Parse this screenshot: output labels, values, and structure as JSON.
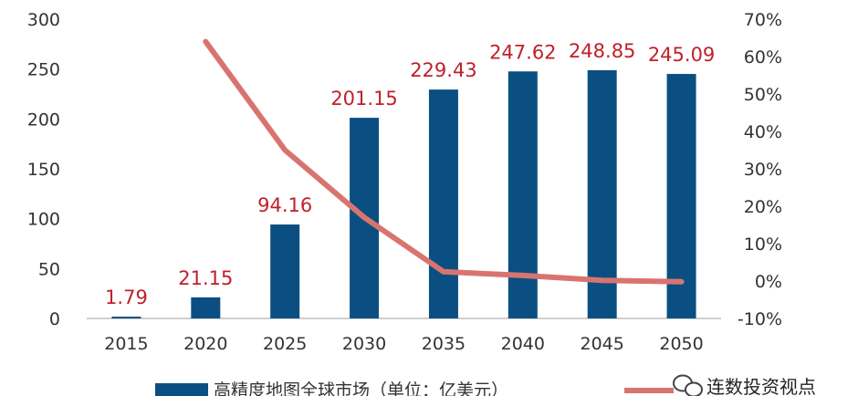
{
  "chart_data": {
    "type": "bar",
    "categories": [
      "2015",
      "2020",
      "2025",
      "2030",
      "2035",
      "2040",
      "2045",
      "2050"
    ],
    "series": [
      {
        "name": "高精度地图全球市场（单位：亿美元）",
        "type": "bar",
        "axis": "left",
        "values": [
          1.79,
          21.15,
          94.16,
          201.15,
          229.43,
          247.62,
          248.85,
          245.09
        ],
        "data_labels": [
          "1.79",
          "21.15",
          "94.16",
          "201.15",
          "229.43",
          "247.62",
          "248.85",
          "245.09"
        ]
      },
      {
        "type": "line",
        "axis": "right",
        "values": [
          null,
          64,
          35,
          17,
          2.5,
          1.5,
          0.2,
          -0.2
        ]
      }
    ],
    "ylim": [
      0,
      300
    ],
    "yticks": [
      "0",
      "50",
      "100",
      "150",
      "200",
      "250",
      "300"
    ],
    "y2lim": [
      -10,
      70
    ],
    "y2ticks": [
      "-10%",
      "0%",
      "10%",
      "20%",
      "30%",
      "40%",
      "50%",
      "60%",
      "70%"
    ],
    "grid": false,
    "legend_position": "bottom",
    "colors": {
      "bar": "#0b4f82",
      "line": "#d87470",
      "label": "#c0202a"
    }
  },
  "watermark": {
    "text": "连数投资视点",
    "icon": "wechat-icon"
  }
}
